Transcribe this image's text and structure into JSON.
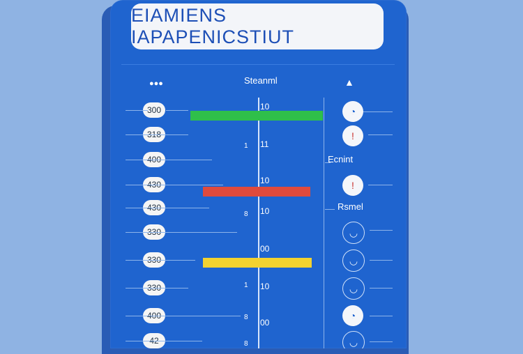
{
  "header": {
    "title": "EIAMIENS IAPAPENICSTIUT"
  },
  "columns": {
    "left_icon": "people-icon",
    "center_label": "Steanml",
    "right_icon": "bell-icon"
  },
  "rows": [
    {
      "label": "300",
      "tick": "10",
      "left_mark": ""
    },
    {
      "label": "318",
      "tick": "11",
      "left_mark": "1"
    },
    {
      "label": "400",
      "tick": "",
      "left_mark": ""
    },
    {
      "label": "430",
      "tick": "10",
      "left_mark": ""
    },
    {
      "label": "430",
      "tick": "10",
      "left_mark": "8"
    },
    {
      "label": "330",
      "tick": "",
      "left_mark": ""
    },
    {
      "label": "330",
      "tick": "00",
      "left_mark": ""
    },
    {
      "label": "330",
      "tick": "10",
      "left_mark": "1"
    },
    {
      "label": "400",
      "tick": "00",
      "left_mark": "8"
    },
    {
      "label": "42",
      "tick": "",
      "left_mark": "8"
    }
  ],
  "right_items": [
    {
      "type": "icon",
      "icon": "gauge-icon",
      "style": "solid",
      "color": "#1f64cf"
    },
    {
      "type": "icon",
      "icon": "alert-icon",
      "style": "solid",
      "color": "#c9302c"
    },
    {
      "type": "text",
      "text": "Ecnint"
    },
    {
      "type": "icon",
      "icon": "alert-icon",
      "style": "solid",
      "color": "#c9302c"
    },
    {
      "type": "text",
      "text": "Rsmel"
    },
    {
      "type": "icon",
      "icon": "gauge-icon",
      "style": "outline"
    },
    {
      "type": "icon",
      "icon": "gauge-icon",
      "style": "outline"
    },
    {
      "type": "icon",
      "icon": "gauge-icon",
      "style": "outline"
    },
    {
      "type": "icon",
      "icon": "gauge-icon",
      "style": "solid"
    },
    {
      "type": "icon",
      "icon": "gauge-icon",
      "style": "outline"
    }
  ],
  "bars": [
    {
      "color": "#2fbf4a",
      "row": 0
    },
    {
      "color": "#e04a3c",
      "row": 3
    },
    {
      "color": "#f2d230",
      "row": 6
    }
  ]
}
